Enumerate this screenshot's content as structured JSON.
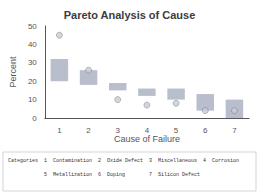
{
  "chart_data": {
    "type": "bar",
    "title": "Pareto Analysis of Cause",
    "xlabel": "Cause of Failure",
    "ylabel": "Percent",
    "categories": [
      1,
      2,
      3,
      4,
      5,
      6,
      7
    ],
    "series": [
      {
        "type": "bar",
        "color": "#b8becc",
        "bottoms": [
          20,
          18,
          15,
          12,
          10,
          4,
          0
        ],
        "tops": [
          32,
          26,
          19,
          16,
          16,
          13,
          10
        ]
      },
      {
        "type": "scatter",
        "color": "#c8ccd8",
        "marker": "circle",
        "values": [
          45,
          26,
          10,
          7,
          8,
          4,
          4
        ]
      }
    ],
    "ylim": [
      0,
      50
    ],
    "yticks": [
      0,
      10,
      20,
      30,
      40,
      50
    ],
    "grid": false,
    "annotations": [
      "Categories  1  Contamination  2  Oxide Defect  3  Miscellaneous  4  Corrosion",
      "            5  Metallization  6  Doping        7  Silicon Defect"
    ]
  }
}
